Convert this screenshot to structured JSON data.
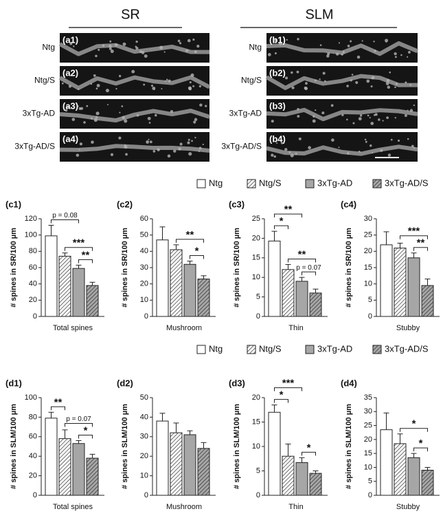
{
  "header": {
    "left": "SR",
    "right": "SLM"
  },
  "micrographs": [
    {
      "panel": "(a1)",
      "label": "Ntg"
    },
    {
      "panel": "(a2)",
      "label": "Ntg/S"
    },
    {
      "panel": "(a3)",
      "label": "3xTg-AD"
    },
    {
      "panel": "(a4)",
      "label": "3xTg-AD/S"
    },
    {
      "panel": "(b1)",
      "label": "Ntg"
    },
    {
      "panel": "(b2)",
      "label": "Ntg/S"
    },
    {
      "panel": "(b3)",
      "label": "3xTg-AD"
    },
    {
      "panel": "(b4)",
      "label": "3xTg-AD/S"
    }
  ],
  "legends": [
    {
      "names": [
        "Ntg",
        "Ntg/S",
        "3xTg-AD",
        "3xTg-AD/S"
      ]
    },
    {
      "names": [
        "Ntg",
        "Ntg/S",
        "3xTg-AD",
        "3xTg-AD/S"
      ]
    }
  ],
  "chart_data": [
    {
      "type": "bar",
      "panel": "(c1)",
      "ylabel": "# spines in SR/100 µm",
      "categories": [
        "Total spines"
      ],
      "ylim": [
        0,
        120
      ],
      "yticks": [
        0,
        20,
        40,
        60,
        80,
        100,
        120
      ],
      "series": [
        {
          "color": "#ffffff",
          "hatch": false,
          "values": [
            99
          ],
          "errors": [
            13
          ]
        },
        {
          "color": "#ffffff",
          "hatch": true,
          "values": [
            74
          ],
          "errors": [
            4
          ]
        },
        {
          "color": "#a6a6a6",
          "hatch": false,
          "values": [
            59
          ],
          "errors": [
            4
          ]
        },
        {
          "color": "#a6a6a6",
          "hatch": true,
          "values": [
            38
          ],
          "errors": [
            4
          ]
        }
      ],
      "brackets": [
        {
          "from": 2,
          "to": 3,
          "label": "**"
        },
        {
          "from": 1,
          "to": 3,
          "label": "***"
        },
        {
          "from": 0,
          "to": 2,
          "label": "p = 0.08"
        }
      ]
    },
    {
      "type": "bar",
      "panel": "(c2)",
      "ylabel": "# spines in SR/100 µm",
      "categories": [
        "Mushroom"
      ],
      "ylim": [
        0,
        60
      ],
      "yticks": [
        0,
        10,
        20,
        30,
        40,
        50,
        60
      ],
      "series": [
        {
          "color": "#ffffff",
          "hatch": false,
          "values": [
            47
          ],
          "errors": [
            8
          ]
        },
        {
          "color": "#ffffff",
          "hatch": true,
          "values": [
            41
          ],
          "errors": [
            3
          ]
        },
        {
          "color": "#a6a6a6",
          "hatch": false,
          "values": [
            32
          ],
          "errors": [
            2
          ]
        },
        {
          "color": "#a6a6a6",
          "hatch": true,
          "values": [
            23
          ],
          "errors": [
            2
          ]
        }
      ],
      "brackets": [
        {
          "from": 2,
          "to": 3,
          "label": "*"
        },
        {
          "from": 1,
          "to": 3,
          "label": "**"
        }
      ]
    },
    {
      "type": "bar",
      "panel": "(c3)",
      "ylabel": "# spines in SR/100 µm",
      "categories": [
        "Thin"
      ],
      "ylim": [
        0,
        25
      ],
      "yticks": [
        0,
        5,
        10,
        15,
        20,
        25
      ],
      "series": [
        {
          "color": "#ffffff",
          "hatch": false,
          "values": [
            19.3
          ],
          "errors": [
            2.5
          ]
        },
        {
          "color": "#ffffff",
          "hatch": true,
          "values": [
            12
          ],
          "errors": [
            1.3
          ]
        },
        {
          "color": "#a6a6a6",
          "hatch": false,
          "values": [
            9
          ],
          "errors": [
            1
          ]
        },
        {
          "color": "#a6a6a6",
          "hatch": true,
          "values": [
            6
          ],
          "errors": [
            1
          ]
        }
      ],
      "brackets": [
        {
          "from": 2,
          "to": 3,
          "label": "p = 0.07"
        },
        {
          "from": 1,
          "to": 3,
          "label": "**"
        },
        {
          "from": 0,
          "to": 1,
          "label": "*"
        },
        {
          "from": 0,
          "to": 2,
          "label": "**"
        }
      ]
    },
    {
      "type": "bar",
      "panel": "(c4)",
      "ylabel": "# spines in SR/100 µm",
      "categories": [
        "Stubby"
      ],
      "ylim": [
        0,
        30
      ],
      "yticks": [
        0,
        5,
        10,
        15,
        20,
        25,
        30
      ],
      "series": [
        {
          "color": "#ffffff",
          "hatch": false,
          "values": [
            22
          ],
          "errors": [
            4
          ]
        },
        {
          "color": "#ffffff",
          "hatch": true,
          "values": [
            21
          ],
          "errors": [
            1.5
          ]
        },
        {
          "color": "#a6a6a6",
          "hatch": false,
          "values": [
            18
          ],
          "errors": [
            1.5
          ]
        },
        {
          "color": "#a6a6a6",
          "hatch": true,
          "values": [
            9.5
          ],
          "errors": [
            2
          ]
        }
      ],
      "brackets": [
        {
          "from": 2,
          "to": 3,
          "label": "**"
        },
        {
          "from": 1,
          "to": 3,
          "label": "***"
        }
      ]
    },
    {
      "type": "bar",
      "panel": "(d1)",
      "ylabel": "# spines in SLM/100 µm",
      "categories": [
        "Total spines"
      ],
      "ylim": [
        0,
        100
      ],
      "yticks": [
        0,
        20,
        40,
        60,
        80,
        100
      ],
      "series": [
        {
          "color": "#ffffff",
          "hatch": false,
          "values": [
            79
          ],
          "errors": [
            6
          ]
        },
        {
          "color": "#ffffff",
          "hatch": true,
          "values": [
            58
          ],
          "errors": [
            9
          ]
        },
        {
          "color": "#a6a6a6",
          "hatch": false,
          "values": [
            53
          ],
          "errors": [
            3
          ]
        },
        {
          "color": "#a6a6a6",
          "hatch": true,
          "values": [
            38
          ],
          "errors": [
            4
          ]
        }
      ],
      "brackets": [
        {
          "from": 2,
          "to": 3,
          "label": "*"
        },
        {
          "from": 1,
          "to": 3,
          "label": "p = 0.07"
        },
        {
          "from": 0,
          "to": 1,
          "label": "**"
        }
      ]
    },
    {
      "type": "bar",
      "panel": "(d2)",
      "ylabel": "# spines in SLM/100 µm",
      "categories": [
        "Mushroom"
      ],
      "ylim": [
        0,
        50
      ],
      "yticks": [
        0,
        10,
        20,
        30,
        40,
        50
      ],
      "series": [
        {
          "color": "#ffffff",
          "hatch": false,
          "values": [
            38
          ],
          "errors": [
            4
          ]
        },
        {
          "color": "#ffffff",
          "hatch": true,
          "values": [
            32
          ],
          "errors": [
            5
          ]
        },
        {
          "color": "#a6a6a6",
          "hatch": false,
          "values": [
            31
          ],
          "errors": [
            2
          ]
        },
        {
          "color": "#a6a6a6",
          "hatch": true,
          "values": [
            24
          ],
          "errors": [
            3
          ]
        }
      ],
      "brackets": []
    },
    {
      "type": "bar",
      "panel": "(d3)",
      "ylabel": "# spines in SLM/100 µm",
      "categories": [
        "Thin"
      ],
      "ylim": [
        0,
        20
      ],
      "yticks": [
        0,
        5,
        10,
        15,
        20
      ],
      "series": [
        {
          "color": "#ffffff",
          "hatch": false,
          "values": [
            17
          ],
          "errors": [
            1.5
          ]
        },
        {
          "color": "#ffffff",
          "hatch": true,
          "values": [
            8
          ],
          "errors": [
            2.5
          ]
        },
        {
          "color": "#a6a6a6",
          "hatch": false,
          "values": [
            6.7
          ],
          "errors": [
            1
          ]
        },
        {
          "color": "#a6a6a6",
          "hatch": true,
          "values": [
            4.5
          ],
          "errors": [
            0.5
          ]
        }
      ],
      "brackets": [
        {
          "from": 2,
          "to": 3,
          "label": "*"
        },
        {
          "from": 0,
          "to": 1,
          "label": "*"
        },
        {
          "from": 0,
          "to": 2,
          "label": "***"
        }
      ]
    },
    {
      "type": "bar",
      "panel": "(d4)",
      "ylabel": "# spines in SLM/100 µm",
      "categories": [
        "Stubby"
      ],
      "ylim": [
        0,
        35
      ],
      "yticks": [
        0,
        5,
        10,
        15,
        20,
        25,
        30,
        35
      ],
      "series": [
        {
          "color": "#ffffff",
          "hatch": false,
          "values": [
            23.5
          ],
          "errors": [
            6
          ]
        },
        {
          "color": "#ffffff",
          "hatch": true,
          "values": [
            18.5
          ],
          "errors": [
            3.5
          ]
        },
        {
          "color": "#a6a6a6",
          "hatch": false,
          "values": [
            13.5
          ],
          "errors": [
            1.5
          ]
        },
        {
          "color": "#a6a6a6",
          "hatch": true,
          "values": [
            9
          ],
          "errors": [
            1
          ]
        }
      ],
      "brackets": [
        {
          "from": 2,
          "to": 3,
          "label": "*"
        },
        {
          "from": 1,
          "to": 3,
          "label": "*"
        }
      ]
    }
  ]
}
